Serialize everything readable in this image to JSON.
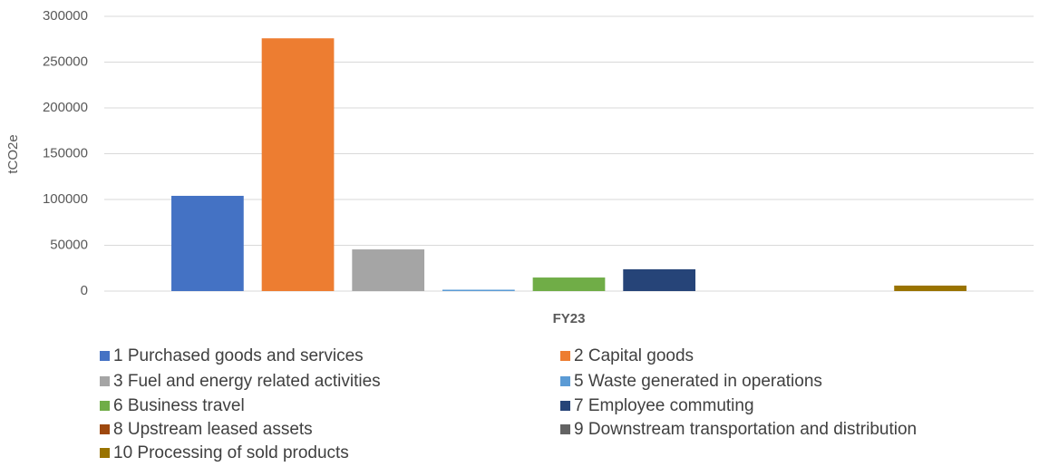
{
  "chart_data": {
    "type": "bar",
    "categories": [
      "FY23"
    ],
    "y_label": "tCO2e",
    "ylim": [
      0,
      300000
    ],
    "yticks": [
      0,
      50000,
      100000,
      150000,
      200000,
      250000,
      300000
    ],
    "grid": true,
    "legend": "bottom",
    "series": [
      {
        "name": "1 Purchased goods and services",
        "color": "#4472c4",
        "values": [
          104000
        ]
      },
      {
        "name": "2 Capital goods",
        "color": "#ed7d31",
        "values": [
          276000
        ]
      },
      {
        "name": "3 Fuel and energy related activities",
        "color": "#a5a5a5",
        "values": [
          45500
        ]
      },
      {
        "name": "5 Waste generated in operations",
        "color": "#5b9bd5",
        "values": [
          1500
        ]
      },
      {
        "name": "6 Business travel",
        "color": "#70ad47",
        "values": [
          14800
        ]
      },
      {
        "name": "7 Employee commuting",
        "color": "#264478",
        "values": [
          23800
        ]
      },
      {
        "name": "8 Upstream leased assets",
        "color": "#9e480e",
        "values": [
          0
        ]
      },
      {
        "name": "9 Downstream transportation and distribution",
        "color": "#636363",
        "values": [
          0
        ]
      },
      {
        "name": "10 Processing of sold products",
        "color": "#997300",
        "values": [
          6000
        ]
      }
    ]
  }
}
